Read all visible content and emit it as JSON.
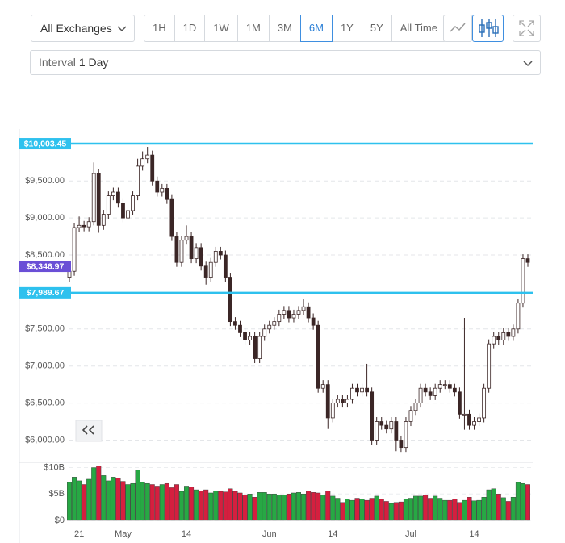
{
  "controls": {
    "exchange": "All Exchanges",
    "ranges": [
      "1H",
      "1D",
      "1W",
      "1M",
      "3M",
      "6M",
      "1Y",
      "5Y",
      "All Time"
    ],
    "active_range": 5,
    "interval_label": "Interval",
    "interval_value": "1 Day"
  },
  "chart_data": {
    "type": "candlestick",
    "categories": [
      null,
      null,
      "21",
      null,
      null,
      null,
      null,
      null,
      null,
      null,
      null,
      "May",
      null,
      null,
      null,
      null,
      null,
      null,
      null,
      null,
      null,
      null,
      null,
      null,
      "14",
      null,
      null,
      null,
      null,
      null,
      null,
      null,
      null,
      null,
      null,
      null,
      null,
      null,
      null,
      null,
      null,
      "Jun",
      null,
      null,
      null,
      null,
      null,
      null,
      null,
      null,
      null,
      null,
      null,
      null,
      "14",
      null,
      null,
      null,
      null,
      null,
      null,
      null,
      null,
      null,
      null,
      null,
      null,
      null,
      null,
      null,
      "Jul",
      null,
      null,
      null,
      null,
      null,
      null,
      null,
      null,
      null,
      null,
      null,
      null,
      "14",
      null,
      null,
      null,
      null,
      null,
      null,
      null,
      null,
      null,
      null,
      null
    ],
    "open": [
      8200,
      8280,
      8870,
      8900,
      8880,
      8950,
      9600,
      8900,
      9050,
      9300,
      9350,
      9200,
      9000,
      9100,
      9300,
      9700,
      9800,
      9850,
      9500,
      9350,
      9400,
      9250,
      8750,
      8400,
      8700,
      8750,
      8450,
      8600,
      8350,
      8200,
      8400,
      8550,
      8500,
      8200,
      7600,
      7550,
      7450,
      7350,
      7400,
      7100,
      7400,
      7500,
      7550,
      7600,
      7700,
      7750,
      7650,
      7700,
      7750,
      7800,
      7650,
      7550,
      6700,
      6750,
      6300,
      6500,
      6550,
      6500,
      6550,
      6700,
      6650,
      6700,
      6650,
      6000,
      6250,
      6200,
      6150,
      6250,
      6000,
      5900,
      6250,
      6400,
      6500,
      6700,
      6650,
      6600,
      6700,
      6750,
      6750,
      6700,
      6650,
      6350,
      6350,
      6200,
      6250,
      6300,
      6700,
      7300,
      7400,
      7350,
      7450,
      7400,
      7500,
      7850,
      8450
    ],
    "high": [
      8340,
      8930,
      9020,
      8960,
      9010,
      9750,
      9660,
      9110,
      9360,
      9410,
      9410,
      9260,
      9160,
      9360,
      9800,
      9900,
      9960,
      9910,
      9560,
      9460,
      9460,
      9310,
      8810,
      8760,
      8900,
      8810,
      8660,
      8660,
      8410,
      8460,
      8610,
      8610,
      8560,
      8260,
      7660,
      7610,
      7510,
      7460,
      7460,
      7460,
      7560,
      7610,
      7660,
      7760,
      7810,
      7810,
      7760,
      7810,
      7900,
      7860,
      7710,
      7610,
      6810,
      6810,
      6560,
      6610,
      6610,
      6610,
      6760,
      6760,
      6760,
      7030,
      6710,
      6310,
      6310,
      6260,
      6310,
      6310,
      6060,
      6310,
      6460,
      6560,
      6760,
      6760,
      6710,
      6760,
      6810,
      6810,
      6810,
      6760,
      6710,
      7650,
      6410,
      6310,
      6360,
      6760,
      7360,
      7460,
      7460,
      7510,
      7510,
      7560,
      7910,
      8510,
      8510
    ],
    "low": [
      8140,
      8220,
      8810,
      8820,
      8820,
      8900,
      8800,
      8840,
      8990,
      9240,
      9140,
      8940,
      8940,
      9040,
      9240,
      9640,
      9740,
      9440,
      9290,
      9290,
      9190,
      8690,
      8340,
      8340,
      8640,
      8390,
      8390,
      8290,
      8100,
      8140,
      8340,
      8440,
      8140,
      7540,
      7490,
      7390,
      7290,
      7290,
      7040,
      7040,
      7340,
      7440,
      7490,
      7540,
      7640,
      7590,
      7590,
      7640,
      7690,
      7590,
      7490,
      6640,
      6640,
      6150,
      6240,
      6440,
      6440,
      6440,
      6490,
      6590,
      6590,
      6590,
      5940,
      5940,
      6140,
      6090,
      6090,
      5850,
      5840,
      5840,
      6190,
      6340,
      6440,
      6590,
      6540,
      6540,
      6640,
      6690,
      6640,
      6590,
      6290,
      6140,
      6140,
      6140,
      6190,
      6240,
      6640,
      7240,
      7290,
      7290,
      7340,
      7340,
      7440,
      7790,
      8340
    ],
    "close": [
      8280,
      8870,
      8900,
      8880,
      8950,
      9600,
      8900,
      9050,
      9300,
      9350,
      9200,
      9000,
      9100,
      9300,
      9700,
      9800,
      9850,
      9500,
      9350,
      9400,
      9250,
      8750,
      8400,
      8700,
      8750,
      8450,
      8600,
      8350,
      8200,
      8400,
      8550,
      8500,
      8200,
      7600,
      7550,
      7450,
      7350,
      7400,
      7100,
      7400,
      7500,
      7550,
      7600,
      7700,
      7750,
      7650,
      7700,
      7750,
      7800,
      7650,
      7550,
      6700,
      6750,
      6300,
      6500,
      6550,
      6500,
      6550,
      6700,
      6650,
      6700,
      6650,
      6000,
      6250,
      6200,
      6150,
      6250,
      6000,
      5900,
      6250,
      6400,
      6500,
      6700,
      6650,
      6600,
      6700,
      6750,
      6750,
      6700,
      6650,
      6350,
      6350,
      6200,
      6250,
      6300,
      6700,
      7300,
      7400,
      7350,
      7450,
      7400,
      7500,
      7850,
      8450,
      8400
    ],
    "volume": [
      7.2,
      8.2,
      7.5,
      6.8,
      7.8,
      10,
      10.3,
      8.5,
      7.5,
      8.2,
      8,
      7.4,
      6.8,
      7,
      9.5,
      7.2,
      7,
      6.8,
      6.5,
      6.8,
      7,
      6.2,
      6.8,
      5.5,
      6.5,
      6.3,
      5.8,
      5.6,
      5.8,
      5.2,
      5.6,
      5.5,
      5.4,
      6,
      5.5,
      5.2,
      4.8,
      5,
      4.4,
      5.3,
      5.3,
      5,
      5,
      4.8,
      4.8,
      5,
      5.2,
      5.3,
      5,
      5.6,
      5.3,
      5.2,
      4.8,
      5.6,
      4.6,
      4.2,
      3.4,
      4,
      3.8,
      4.2,
      4,
      3.8,
      4.2,
      4.6,
      4,
      3.6,
      3.2,
      3.4,
      3.5,
      4,
      4.2,
      4.6,
      4.6,
      4.8,
      4.2,
      4.6,
      4.2,
      3.8,
      3.8,
      4,
      3.4,
      3.8,
      4.4,
      3.7,
      3.8,
      4.4,
      5.8,
      6,
      5,
      4.3,
      3.6,
      4.4,
      7.2,
      7,
      6.8
    ],
    "ylim": [
      5700,
      10200
    ],
    "yticks": [
      {
        "value": 6000,
        "label": "$6,000.00"
      },
      {
        "value": 6500,
        "label": "$6,500.00"
      },
      {
        "value": 7000,
        "label": "$7,000.00"
      },
      {
        "value": 7500,
        "label": "$7,500.00"
      },
      {
        "value": 8500,
        "label": "$8,500.00"
      },
      {
        "value": 9000,
        "label": "$9,000.00"
      },
      {
        "value": 9500,
        "label": "$9,500.00"
      }
    ],
    "volume_ylim": [
      0,
      11
    ],
    "volume_yticks": [
      {
        "value": 0,
        "label": "$0"
      },
      {
        "value": 5,
        "label": "$5B"
      },
      {
        "value": 10,
        "label": "$10B"
      }
    ],
    "levels": [
      {
        "value": 10003.45,
        "label": "$10,003.45"
      },
      {
        "value": 7989.67,
        "label": "$7,989.67"
      }
    ],
    "current_price": {
      "value": 8346.97,
      "label": "$8,346.97"
    },
    "level_color": "#2ec1ee",
    "current_color": "#6a4fd6",
    "up_color": "#27a844",
    "down_color": "#d51f3f",
    "candle_color": "#3b2626",
    "grid": true
  }
}
